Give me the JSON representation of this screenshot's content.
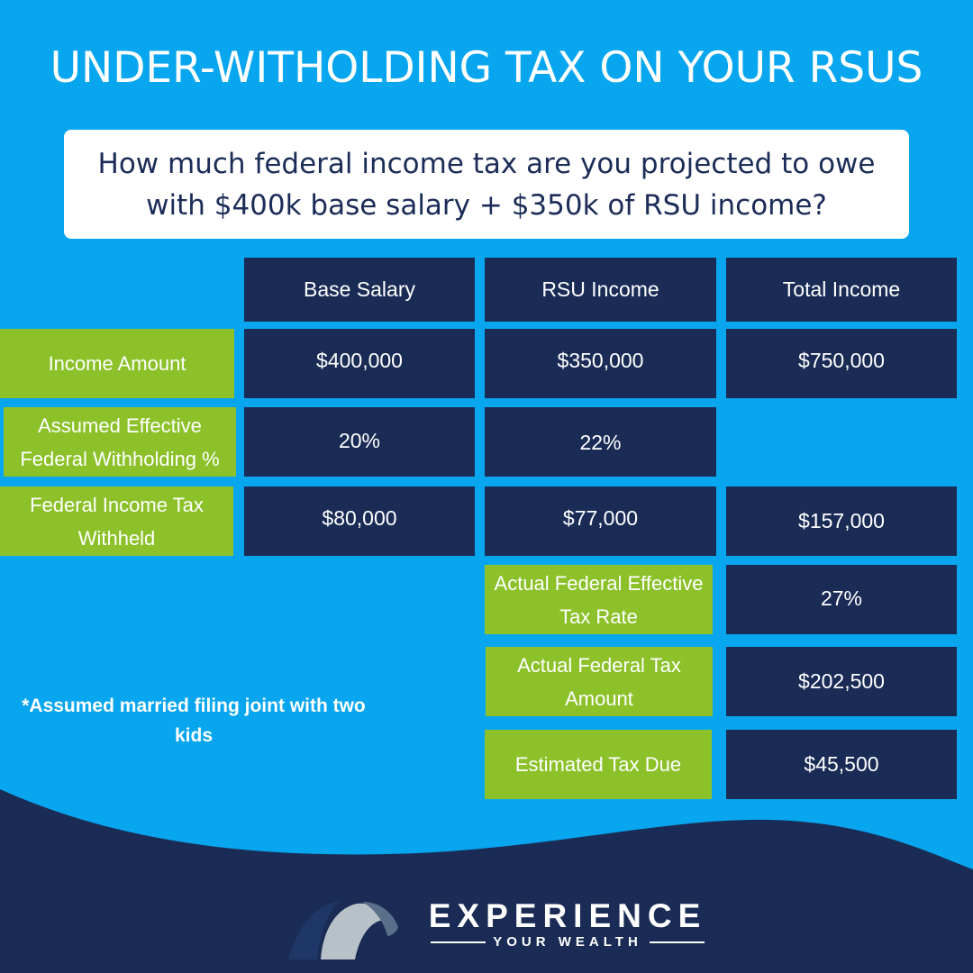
{
  "title": "UNDER-WITHOLDING TAX ON YOUR RSUS",
  "question": "How much federal income tax are you projected to owe with $400k base salary + $350k of RSU income?",
  "headers": {
    "base_salary": "Base Salary",
    "rsu_income": "RSU Income",
    "total_income": "Total Income"
  },
  "rows": {
    "income_amount": {
      "label": "Income Amount",
      "base_salary": "$400,000",
      "rsu_income": "$350,000",
      "total_income": "$750,000"
    },
    "withholding_pct": {
      "label": "Assumed Effective Federal Withholding %",
      "base_salary": "20%",
      "rsu_income": "22%"
    },
    "tax_withheld": {
      "label": "Federal Income Tax Withheld",
      "base_salary": "$80,000",
      "rsu_income": "$77,000",
      "total_income": "$157,000"
    }
  },
  "summary": {
    "effective_rate": {
      "label": "Actual Federal Effective Tax Rate",
      "value": "27%"
    },
    "tax_amount": {
      "label": "Actual Federal Tax Amount",
      "value": "$202,500"
    },
    "tax_due": {
      "label": "Estimated Tax Due",
      "value": "$45,500"
    }
  },
  "note": "*Assumed married filing joint with two kids",
  "brand": {
    "name": "EXPERIENCE",
    "tagline": "YOUR WEALTH"
  },
  "colors": {
    "background": "#08a6ef",
    "navy": "#1a2c56",
    "green": "#8cc12a",
    "white": "#ffffff"
  }
}
